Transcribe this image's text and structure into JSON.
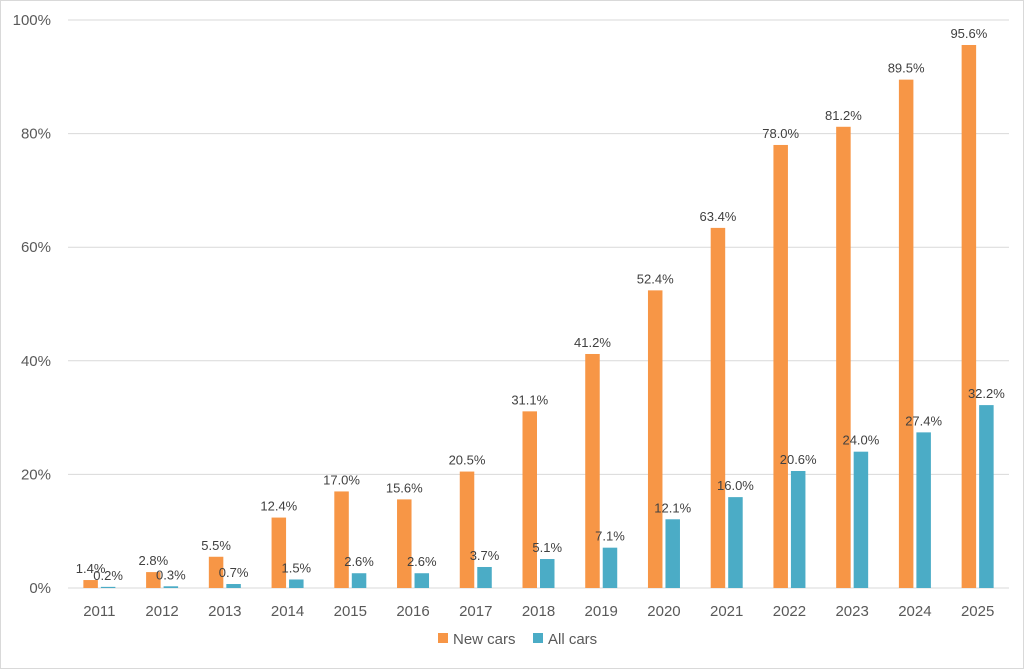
{
  "chart_data": {
    "type": "bar",
    "title": "",
    "xlabel": "",
    "ylabel": "",
    "categories": [
      "2011",
      "2012",
      "2013",
      "2014",
      "2015",
      "2016",
      "2017",
      "2018",
      "2019",
      "2020",
      "2021",
      "2022",
      "2023",
      "2024",
      "2025"
    ],
    "series": [
      {
        "name": "New cars",
        "color": "#F79646",
        "values": [
          1.4,
          2.8,
          5.5,
          12.4,
          17.0,
          15.6,
          20.5,
          31.1,
          41.2,
          52.4,
          63.4,
          78.0,
          81.2,
          89.5,
          95.6
        ],
        "labels": [
          "1.4%",
          "2.8%",
          "5.5%",
          "12.4%",
          "17.0%",
          "15.6%",
          "20.5%",
          "31.1%",
          "41.2%",
          "52.4%",
          "63.4%",
          "78.0%",
          "81.2%",
          "89.5%",
          "95.6%"
        ]
      },
      {
        "name": "All cars",
        "color": "#4BACC6",
        "values": [
          0.2,
          0.3,
          0.7,
          1.5,
          2.6,
          2.6,
          3.7,
          5.1,
          7.1,
          12.1,
          16.0,
          20.6,
          24.0,
          27.4,
          32.2
        ],
        "labels": [
          "0.2%",
          "0.3%",
          "0.7%",
          "1.5%",
          "2.6%",
          "2.6%",
          "3.7%",
          "5.1%",
          "7.1%",
          "12.1%",
          "16.0%",
          "20.6%",
          "24.0%",
          "27.4%",
          "32.2%"
        ]
      }
    ],
    "ylim": [
      0,
      100
    ],
    "yticks": [
      0,
      20,
      40,
      60,
      80,
      100
    ],
    "ytick_labels": [
      "0%",
      "20%",
      "40%",
      "60%",
      "80%",
      "100%"
    ],
    "grid": true,
    "gridline_color": "#d9d9d9",
    "legend_position": "bottom"
  }
}
